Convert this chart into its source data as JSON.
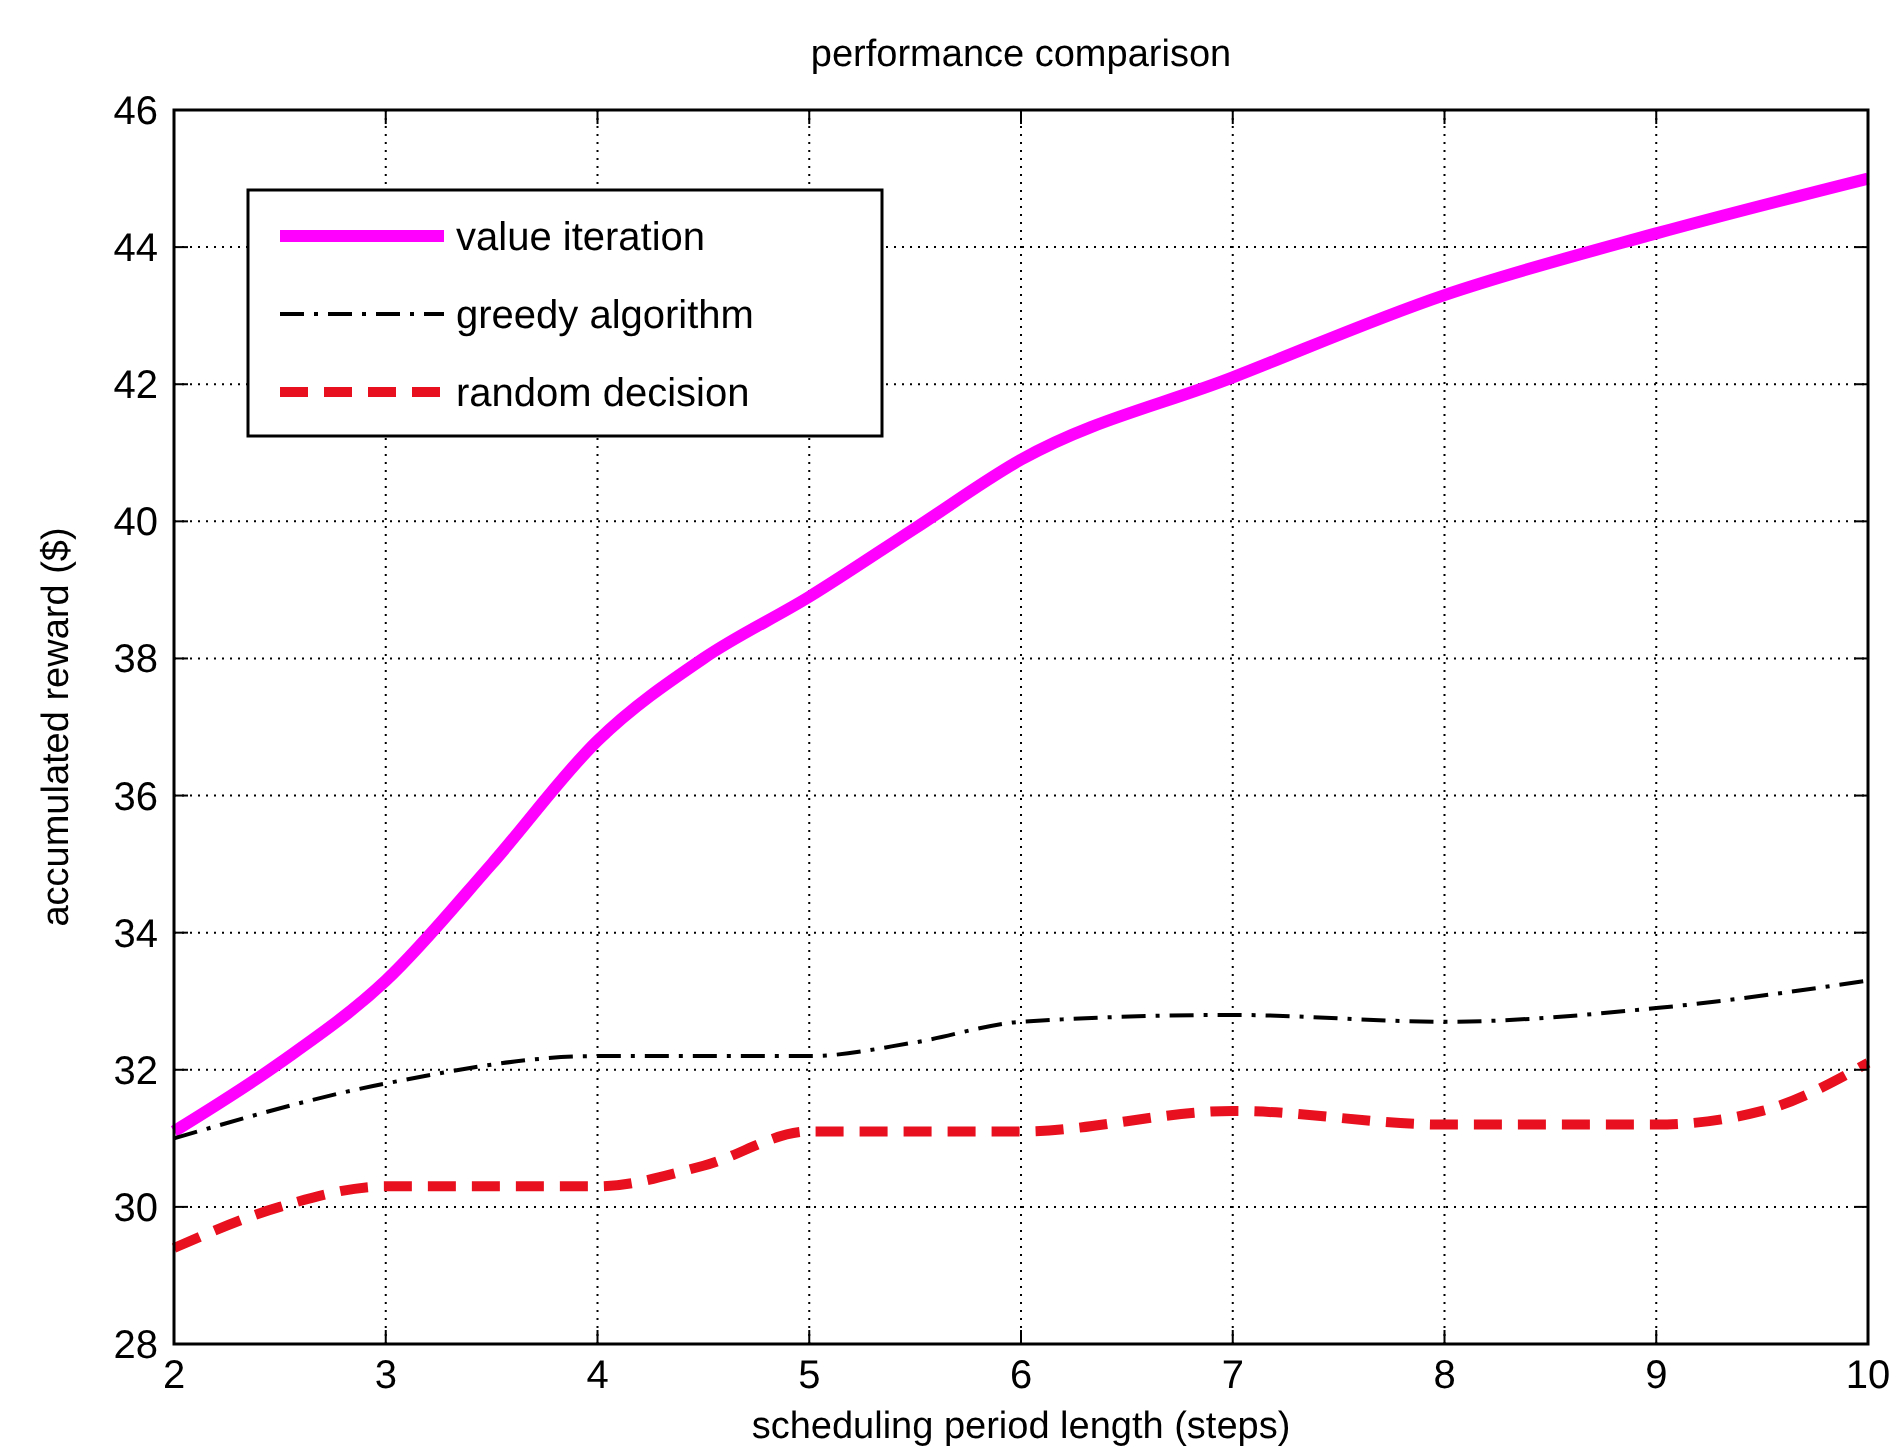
{
  "chart_data": {
    "type": "line",
    "title": "performance comparison",
    "xlabel": "scheduling period length (steps)",
    "ylabel": "accumulated reward ($)",
    "xlim": [
      2,
      10
    ],
    "xticks": [
      2,
      3,
      4,
      5,
      6,
      7,
      8,
      9,
      10
    ],
    "ylim": [
      28,
      46
    ],
    "yticks": [
      28,
      30,
      32,
      34,
      36,
      38,
      40,
      42,
      44,
      46
    ],
    "grid": true,
    "legend": "top left",
    "series": [
      {
        "name": "value iteration",
        "color": "#ff00ff",
        "line_style": "solid",
        "x": [
          2,
          2.5,
          3,
          3.5,
          4,
          4.5,
          5,
          5.5,
          6,
          7,
          8,
          9,
          10
        ],
        "values": [
          31.1,
          32.1,
          33.3,
          35.0,
          36.8,
          38.0,
          38.9,
          39.9,
          40.9,
          42.1,
          43.3,
          44.2,
          45.0
        ]
      },
      {
        "name": "greedy algorithm",
        "color": "#000000",
        "line_style": "dashdot",
        "x": [
          2,
          3,
          4,
          5,
          5.5,
          6,
          7,
          8,
          9,
          10
        ],
        "values": [
          31.0,
          31.8,
          32.2,
          32.2,
          32.4,
          32.7,
          32.8,
          32.7,
          32.9,
          33.3
        ]
      },
      {
        "name": "random decision",
        "color": "#e8101e",
        "line_style": "dashed",
        "x": [
          2,
          2.5,
          3,
          4,
          4.5,
          5,
          6,
          7,
          8,
          9,
          9.5,
          10
        ],
        "values": [
          29.4,
          30.0,
          30.3,
          30.3,
          30.6,
          31.1,
          31.1,
          31.4,
          31.2,
          31.2,
          31.4,
          32.1
        ]
      }
    ]
  }
}
